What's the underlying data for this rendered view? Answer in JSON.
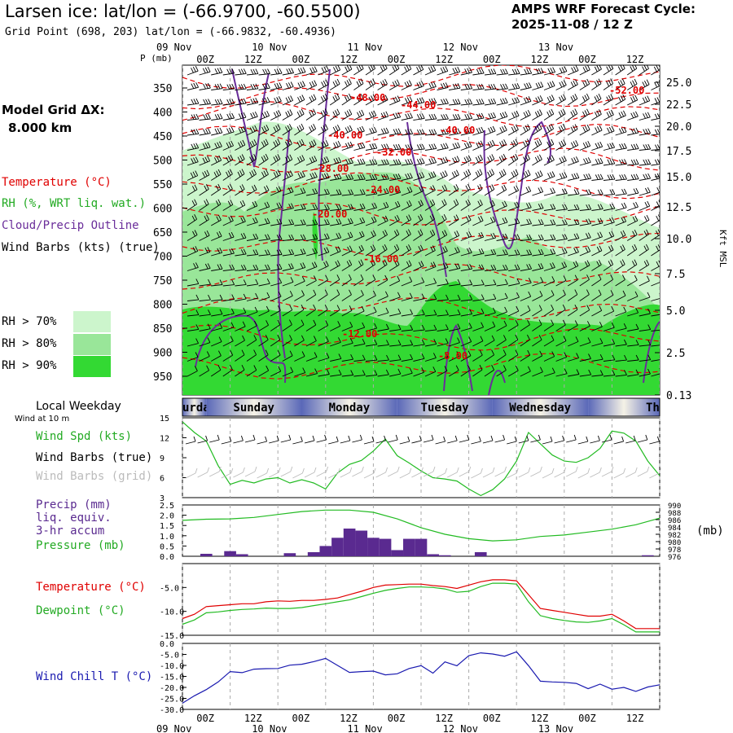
{
  "header": {
    "title": "Larsen ice:  lat/lon = (-66.9700, -60.5500)",
    "subtitle": "Grid Point (698, 203) lat/lon = (-66.9832, -60.4936)",
    "cycle_line1": "AMPS WRF Forecast Cycle:",
    "cycle_line2": "2025-11-08 / 12  Z",
    "grid_dx_line1": "Model Grid ΔX:",
    "grid_dx_line2": "8.000 km"
  },
  "legend": {
    "temperature": "Temperature (°C)",
    "rh": "RH (%, WRT liq. wat.)",
    "cloud": "Cloud/Precip Outline",
    "wind": "Wind Barbs (kts) (true)",
    "rh70": "RH > 70%",
    "rh80": "RH > 80%",
    "rh90": "RH > 90%",
    "colors": {
      "rh70": "#ccf5cc",
      "rh80": "#99e699",
      "rh90": "#33d933",
      "temp": "#e00000",
      "cloud": "#6a2d9a",
      "precip": "#5a2a90",
      "pressure": "#22bb22",
      "windchill": "#1a1ab0"
    }
  },
  "axes": {
    "p_label": "P (mb)",
    "kft_label": "Kft MSL",
    "top_dates": [
      "09 Nov",
      "10 Nov",
      "11 Nov",
      "12 Nov",
      "13 Nov"
    ],
    "time_ticks": [
      "00Z",
      "12Z",
      "00Z",
      "12Z",
      "00Z",
      "12Z",
      "00Z",
      "12Z",
      "00Z",
      "12Z"
    ],
    "bottom_dates": [
      "09 Nov",
      "10 Nov",
      "11 Nov",
      "12 Nov",
      "13 Nov"
    ]
  },
  "weekday_strip": {
    "title": "Local Weekday",
    "subtitle": "Wind at 10 m",
    "days": [
      "urday",
      "Sunday",
      "Monday",
      "Tuesday",
      "Wednesday",
      "Th"
    ]
  },
  "panel_labels": {
    "wind_spd": "Wind Spd (kts)",
    "wind_barbs_true": "Wind Barbs (true)",
    "wind_barbs_grid": "Wind Barbs (grid)",
    "precip1": "Precip (mm)",
    "precip2": "liq. equiv.",
    "precip3": "3-hr accum",
    "pressure": "Pressure (mb)",
    "pressure_unit": "(mb)",
    "temperature": "Temperature (°C)",
    "dewpoint": "Dewpoint (°C)",
    "windchill": "Wind Chill T (°C)"
  },
  "chart_data": [
    {
      "type": "heatmap",
      "name": "cross-section",
      "x_hours": [
        0,
        120
      ],
      "pressure_ticks": [
        350,
        400,
        450,
        500,
        550,
        600,
        650,
        700,
        750,
        800,
        850,
        900,
        950
      ],
      "kft_ticks": [
        "25.0",
        "22.5",
        "20.0",
        "17.5",
        "15.0",
        "12.5",
        "10.0",
        "7.5",
        "5.0",
        "2.5",
        "0.13"
      ],
      "temperature_contour_labels": [
        "-52.00",
        "-48.00",
        "-44.00",
        "-40.00",
        "-40.00",
        "-32.00",
        "-28.00",
        "-24.00",
        "-20.00",
        "-16.00",
        "-12.00",
        "-8.00"
      ]
    },
    {
      "type": "line",
      "name": "wind-speed",
      "y_ticks": [
        3,
        6,
        9,
        12,
        15
      ],
      "ylim": [
        3,
        15
      ],
      "x": [
        0,
        3,
        6,
        9,
        12,
        15,
        18,
        21,
        24,
        27,
        30,
        33,
        36,
        39,
        42,
        45,
        48,
        51,
        54,
        57,
        60,
        63,
        66,
        69,
        72,
        75,
        78,
        81,
        84,
        87,
        90,
        93,
        96,
        99,
        102,
        105,
        108,
        111,
        114,
        117,
        120
      ],
      "values": [
        14.4,
        12.8,
        11.5,
        7.8,
        5.0,
        5.6,
        5.2,
        5.8,
        6.0,
        5.2,
        5.7,
        5.2,
        4.3,
        6.7,
        8.0,
        8.6,
        10.0,
        11.8,
        9.3,
        8.2,
        7.0,
        6.0,
        5.8,
        5.5,
        4.3,
        3.3,
        4.2,
        5.8,
        8.5,
        12.8,
        11.1,
        9.4,
        8.5,
        8.3,
        9.0,
        10.4,
        13.0,
        12.7,
        11.5,
        8.5,
        6.3
      ]
    },
    {
      "type": "bar",
      "name": "precip",
      "y_ticks": [
        0.0,
        0.5,
        1.0,
        1.5,
        2.0,
        2.5
      ],
      "ylim": [
        0,
        2.5
      ],
      "x": [
        6,
        12,
        15,
        27,
        33,
        36,
        39,
        42,
        45,
        48,
        51,
        54,
        57,
        60,
        63,
        66,
        75,
        117
      ],
      "values": [
        0.12,
        0.25,
        0.1,
        0.15,
        0.2,
        0.5,
        0.9,
        1.35,
        1.25,
        0.9,
        0.85,
        0.3,
        0.85,
        0.85,
        0.1,
        0.05,
        0.2,
        0.05
      ]
    },
    {
      "type": "line",
      "name": "pressure",
      "y_ticks": [
        976,
        978,
        980,
        982,
        984,
        986,
        988,
        990
      ],
      "ylim": [
        976,
        990
      ],
      "x": [
        0,
        6,
        12,
        18,
        24,
        30,
        36,
        42,
        48,
        54,
        60,
        66,
        72,
        78,
        84,
        90,
        96,
        102,
        108,
        114,
        120
      ],
      "values": [
        985.8,
        986.1,
        986.2,
        986.6,
        987.4,
        988.2,
        988.6,
        988.6,
        988.0,
        986.2,
        983.8,
        982.0,
        980.8,
        980.2,
        980.5,
        981.4,
        981.8,
        982.6,
        983.4,
        984.6,
        986.4
      ]
    },
    {
      "type": "line",
      "name": "temp-dewpoint",
      "y_ticks": [
        -15,
        -10,
        -5
      ],
      "ylim": [
        -15,
        0
      ],
      "x": [
        0,
        3,
        6,
        9,
        12,
        15,
        18,
        21,
        24,
        27,
        30,
        33,
        36,
        39,
        42,
        45,
        48,
        51,
        54,
        57,
        60,
        63,
        66,
        69,
        72,
        75,
        78,
        81,
        84,
        87,
        90,
        93,
        96,
        99,
        102,
        105,
        108,
        111,
        114,
        117,
        120
      ],
      "series": [
        {
          "values": [
            -11.5,
            -10.6,
            -9.0,
            -8.8,
            -8.6,
            -8.4,
            -8.4,
            -8.0,
            -7.8,
            -7.9,
            -7.7,
            -7.7,
            -7.5,
            -7.2,
            -6.5,
            -5.8,
            -5.0,
            -4.5,
            -4.4,
            -4.3,
            -4.3,
            -4.6,
            -4.8,
            -5.2,
            -4.5,
            -3.8,
            -3.4,
            -3.4,
            -3.6,
            -6.5,
            -9.4,
            -9.8,
            -10.2,
            -10.6,
            -11.0,
            -11.0,
            -10.6,
            -12.0,
            -13.6,
            -13.6,
            -13.6
          ]
        },
        {
          "values": [
            -12.7,
            -11.8,
            -10.3,
            -10.1,
            -9.8,
            -9.6,
            -9.5,
            -9.3,
            -9.4,
            -9.4,
            -9.2,
            -8.8,
            -8.4,
            -8.0,
            -7.6,
            -6.9,
            -6.2,
            -5.6,
            -5.2,
            -4.9,
            -4.9,
            -5.0,
            -5.3,
            -6.0,
            -5.8,
            -4.8,
            -4.1,
            -4.1,
            -4.3,
            -8.0,
            -10.9,
            -11.5,
            -11.9,
            -12.2,
            -12.3,
            -12.0,
            -11.5,
            -12.8,
            -14.3,
            -14.3,
            -14.3
          ]
        }
      ]
    },
    {
      "type": "line",
      "name": "wind-chill",
      "y_ticks": [
        -30,
        -25,
        -20,
        -15,
        -10,
        -5,
        0
      ],
      "ylim": [
        -30,
        0
      ],
      "x": [
        0,
        3,
        6,
        9,
        12,
        15,
        18,
        21,
        24,
        27,
        30,
        33,
        36,
        39,
        42,
        45,
        48,
        51,
        54,
        57,
        60,
        63,
        66,
        69,
        72,
        75,
        78,
        81,
        84,
        87,
        90,
        93,
        96,
        99,
        102,
        105,
        108,
        111,
        114,
        117,
        120
      ],
      "values": [
        -27.2,
        -23.8,
        -21.0,
        -17.5,
        -12.8,
        -13.3,
        -11.7,
        -11.5,
        -11.4,
        -9.9,
        -9.5,
        -8.3,
        -6.8,
        -10.0,
        -13.2,
        -12.8,
        -12.6,
        -14.3,
        -13.8,
        -11.4,
        -10.1,
        -13.5,
        -8.4,
        -10.2,
        -5.6,
        -4.3,
        -4.8,
        -5.8,
        -3.8,
        -10.1,
        -17.2,
        -17.5,
        -17.7,
        -18.2,
        -20.6,
        -18.5,
        -20.8,
        -20.0,
        -21.8,
        -19.8,
        -18.8
      ]
    }
  ]
}
